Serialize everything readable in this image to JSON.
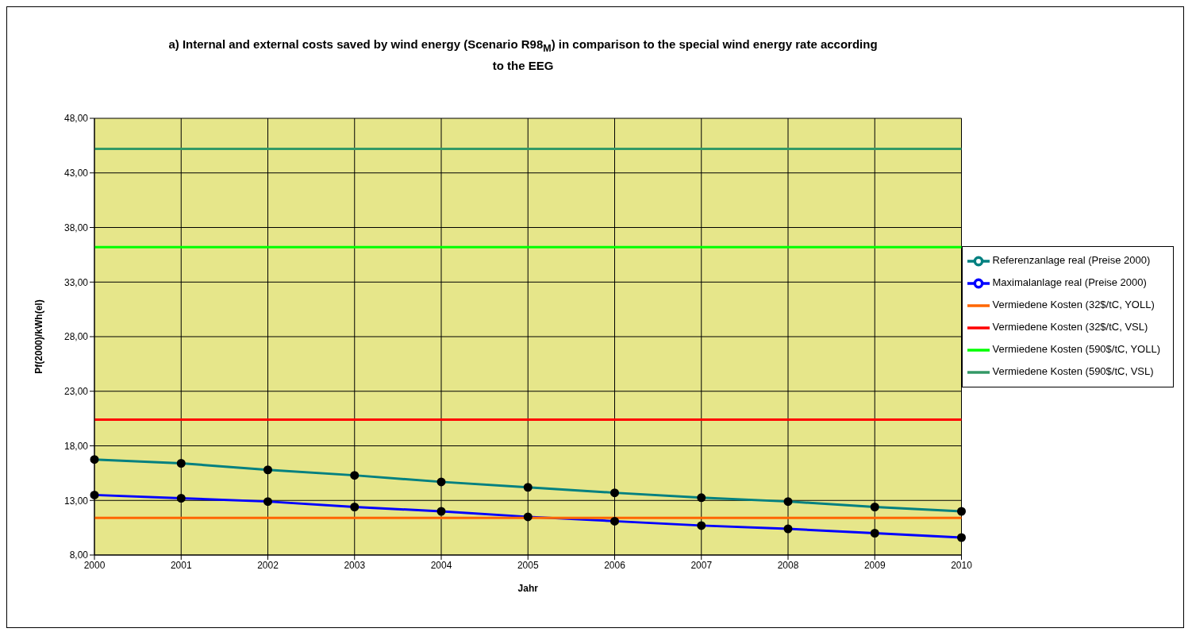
{
  "chart_data": {
    "type": "line",
    "title": "a) Internal and external costs saved by wind energy (Scenario R98$_{M}$) in comparison to the special wind energy rate according to  the EEG",
    "xlabel": "Jahr",
    "ylabel": "Pf(2000)/kWh(el)",
    "categories": [
      "2000",
      "2001",
      "2002",
      "2003",
      "2004",
      "2005",
      "2006",
      "2007",
      "2008",
      "2009",
      "2010"
    ],
    "series": [
      {
        "name": "Referenzanlage real (Preise 2000)",
        "color": "#008080",
        "marker": "circle",
        "values": [
          16.75,
          16.4,
          15.8,
          15.3,
          14.7,
          14.2,
          13.7,
          13.25,
          12.9,
          12.4,
          12.0
        ]
      },
      {
        "name": "Maximalanlage real (Preise 2000)",
        "color": "#0000ff",
        "marker": "circle",
        "values": [
          13.5,
          13.2,
          12.9,
          12.4,
          12.0,
          11.5,
          11.1,
          10.7,
          10.4,
          10.0,
          9.6
        ]
      },
      {
        "name": "Vermiedene Kosten (32$/tC, YOLL)",
        "color": "#ff6600",
        "marker": "none",
        "values": [
          11.4,
          11.4,
          11.4,
          11.4,
          11.4,
          11.4,
          11.4,
          11.4,
          11.4,
          11.4,
          11.4
        ]
      },
      {
        "name": "Vermiedene Kosten (32$/tC, VSL)",
        "color": "#ff0000",
        "marker": "none",
        "values": [
          20.4,
          20.4,
          20.4,
          20.4,
          20.4,
          20.4,
          20.4,
          20.4,
          20.4,
          20.4,
          20.4
        ]
      },
      {
        "name": "Vermiedene Kosten (590$/tC, YOLL)",
        "color": "#00ff00",
        "marker": "none",
        "values": [
          36.2,
          36.2,
          36.2,
          36.2,
          36.2,
          36.2,
          36.2,
          36.2,
          36.2,
          36.2,
          36.2
        ]
      },
      {
        "name": "Vermiedene Kosten (590$/tC, VSL)",
        "color": "#339966",
        "marker": "none",
        "values": [
          45.2,
          45.2,
          45.2,
          45.2,
          45.2,
          45.2,
          45.2,
          45.2,
          45.2,
          45.2,
          45.2
        ]
      }
    ],
    "ylim": [
      8,
      48
    ],
    "yticks": [
      {
        "value": 8,
        "label": "8,00"
      },
      {
        "value": 13,
        "label": "13,00"
      },
      {
        "value": 18,
        "label": "18,00"
      },
      {
        "value": 23,
        "label": "23,00"
      },
      {
        "value": 28,
        "label": "28,00"
      },
      {
        "value": 33,
        "label": "33,00"
      },
      {
        "value": 38,
        "label": "38,00"
      },
      {
        "value": 43,
        "label": "43,00"
      },
      {
        "value": 48,
        "label": "48,00"
      }
    ],
    "grid": true,
    "legend": "right",
    "line_style": "solid"
  }
}
